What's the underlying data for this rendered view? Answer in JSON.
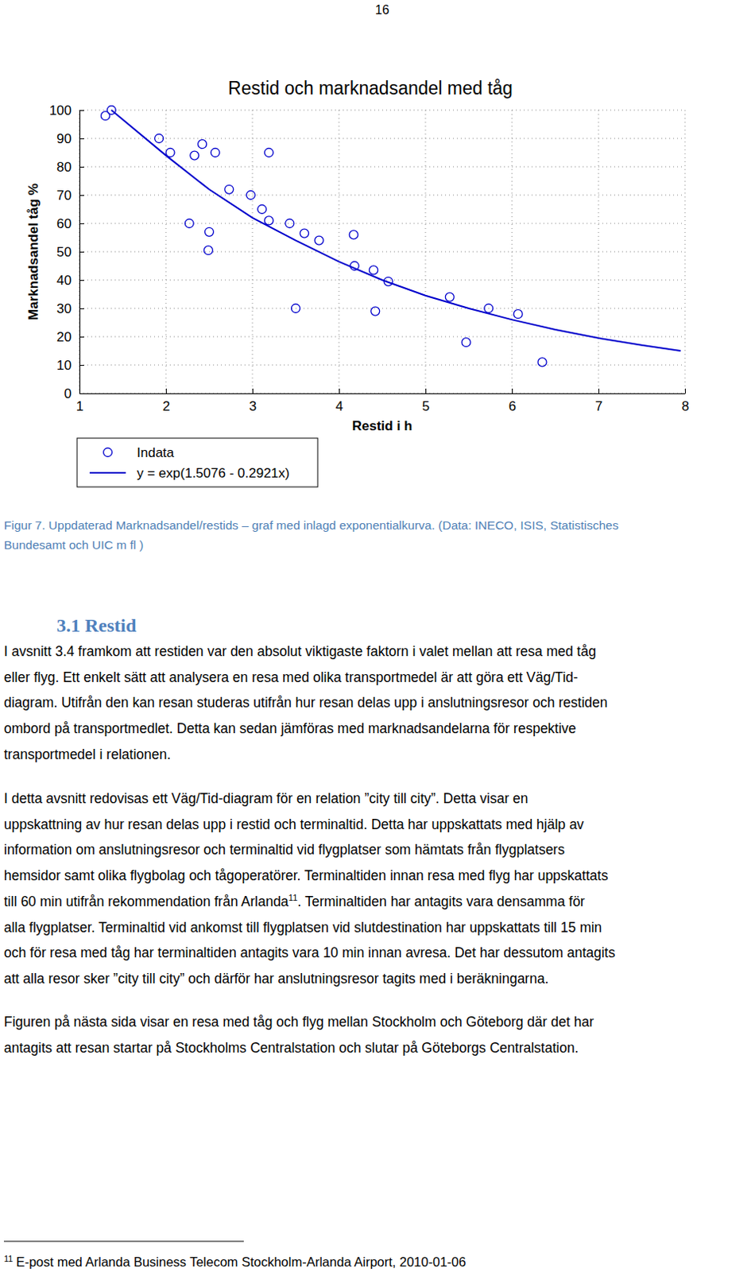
{
  "page_number": "16",
  "chart_data": {
    "type": "scatter",
    "title": "Restid och marknadsandel med tåg",
    "x_label": "Restid i h",
    "y_label": "Marknadsandel tåg %",
    "xlim": [
      1,
      8
    ],
    "ylim": [
      0,
      100
    ],
    "xticks": [
      1,
      2,
      3,
      4,
      5,
      6,
      7,
      8
    ],
    "yticks": [
      0,
      10,
      20,
      30,
      40,
      50,
      60,
      70,
      80,
      90,
      100
    ],
    "grid": true,
    "legend": "below",
    "series": [
      {
        "name": "Indata",
        "type": "scatter",
        "marker": "circle",
        "color": "#0000cc",
        "x": [
          1.3,
          1.37,
          1.92,
          2.05,
          2.33,
          2.42,
          2.57,
          2.27,
          2.5,
          2.49,
          2.73,
          2.98,
          3.11,
          3.19,
          3.19,
          3.43,
          3.6,
          3.77,
          3.5,
          4.17,
          4.18,
          4.4,
          4.42,
          4.57,
          5.28,
          5.47,
          5.73,
          6.07,
          6.35
        ],
        "values": [
          98,
          100,
          90,
          85,
          84,
          88,
          85,
          60,
          57,
          50.5,
          72,
          70,
          65,
          61,
          85,
          60,
          56.5,
          54,
          30,
          56,
          45,
          43.5,
          29,
          39.5,
          34,
          18,
          30,
          28,
          11
        ]
      },
      {
        "name": "y = exp(1.5076 - 0.2921x)",
        "type": "line",
        "line_style": "solid",
        "color": "#0000cc",
        "x": [
          1.37,
          2,
          2.5,
          3,
          3.5,
          4,
          4.5,
          5,
          5.5,
          6,
          6.5,
          7,
          7.5,
          7.95
        ],
        "values": [
          100,
          84,
          72,
          62,
          54,
          46.5,
          40,
          34.5,
          30,
          26,
          22.5,
          19.5,
          17,
          15
        ]
      }
    ]
  },
  "caption": [
    "Figur 7. Uppdaterad Marknadsandel/restids – graf med inlagd exponentialkurva. (Data: INECO, ISIS, Statistisches",
    "Bundesamt och UIC m fl )"
  ],
  "heading": "3.1 Restid",
  "paragraphs": [
    {
      "lines": [
        "I avsnitt 3.4 framkom att restiden var den absolut viktigaste faktorn i valet mellan att resa med tåg",
        "eller flyg. Ett enkelt sätt att analysera en resa med olika transportmedel är att göra ett Väg/Tid-",
        "diagram. Utifrån den kan resan studeras utifrån hur resan delas upp i anslutningsresor och restiden",
        "ombord på transportmedlet. Detta kan sedan jämföras med marknadsandelarna för respektive",
        "transportmedel i relationen."
      ]
    },
    {
      "lines": [
        "I detta avsnitt redovisas ett Väg/Tid-diagram för en relation ”city till city”. Detta visar en",
        "uppskattning av hur resan delas upp i restid och terminaltid. Detta har uppskattats med hjälp av",
        "information om anslutningsresor och terminaltid vid flygplatser som hämtats från flygplatsers",
        "hemsidor samt olika flygbolag och tågoperatörer. Terminaltiden innan resa med flyg har uppskattats",
        {
          "text": "till 60 min utifrån rekommendation från Arlanda",
          "footnote_ref": "11",
          "after": ". Terminaltiden har antagits vara densamma för"
        },
        "alla flygplatser. Terminaltid vid ankomst till flygplatsen vid slutdestination har uppskattats till 15 min",
        "och för resa med tåg har terminaltiden antagits vara 10 min innan avresa. Det har dessutom antagits",
        "att alla resor sker ”city till city” och därför har anslutningsresor tagits med i beräkningarna."
      ]
    },
    {
      "lines": [
        "Figuren på nästa sida visar en resa med tåg och flyg mellan Stockholm och Göteborg där det har",
        "antagits att resan startar på Stockholms Centralstation och slutar på Göteborgs Centralstation."
      ]
    }
  ],
  "footnote": {
    "number": "11",
    "text": "E-post med Arlanda Business Telecom Stockholm-Arlanda Airport, 2010-01-06"
  }
}
